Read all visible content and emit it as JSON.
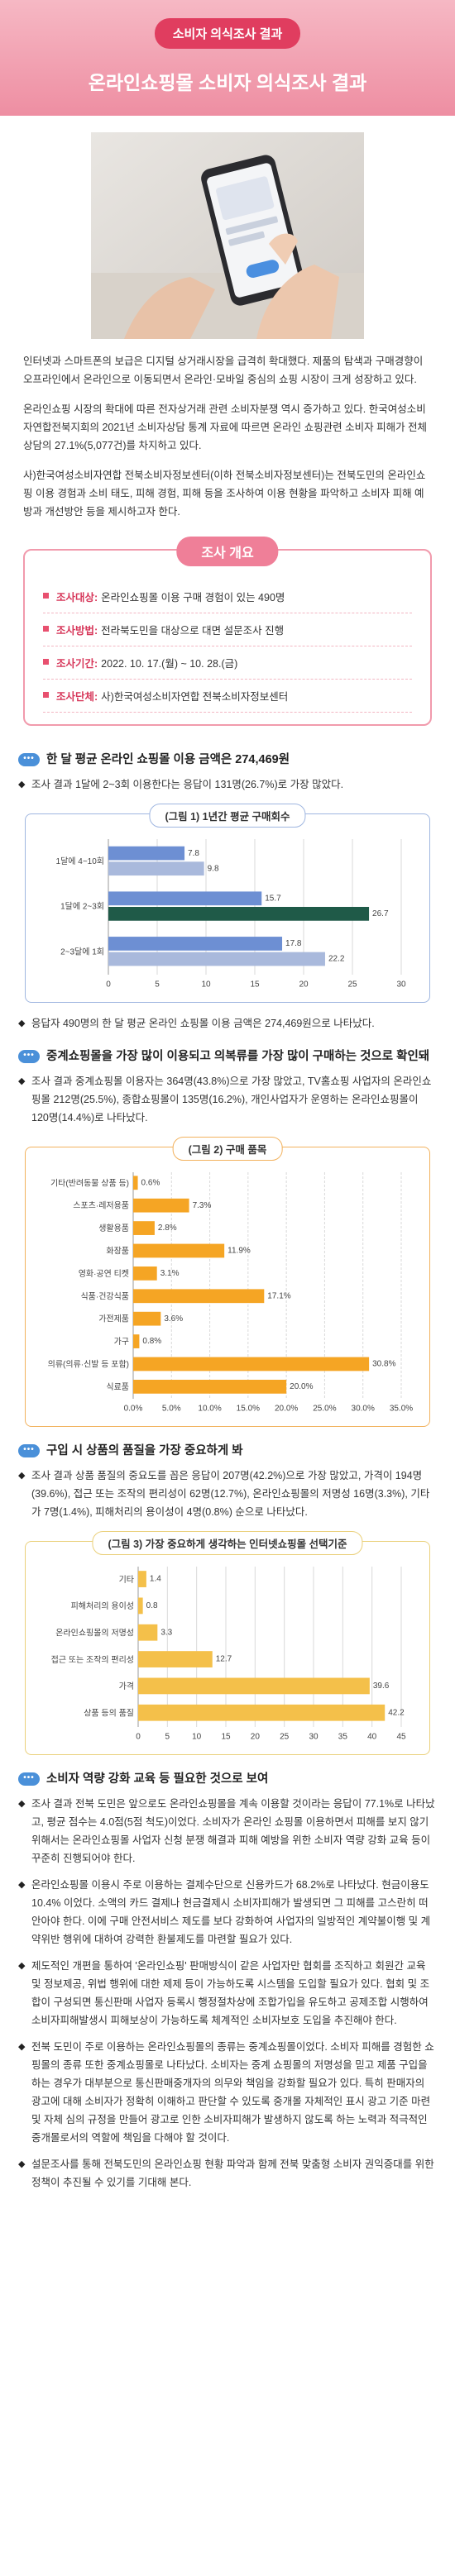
{
  "header": {
    "badge": "소비자 의식조사 결과",
    "title": "온라인쇼핑몰 소비자 의식조사 결과"
  },
  "intro": [
    "인터넷과 스마트폰의 보급은 디지털 상거래시장을 급격히 확대했다. 제품의 탐색과 구매경향이 오프라인에서 온라인으로 이동되면서 온라인·모바일 중심의 쇼핑 시장이 크게 성장하고 있다.",
    "온라인쇼핑 시장의 확대에 따른 전자상거래 관련 소비자분쟁 역시 증가하고 있다. 한국여성소비자연합전북지회의 2021년 소비자상담 통계 자료에 따르면 온라인 쇼핑관련 소비자 피해가 전체 상담의 27.1%(5,077건)를 차지하고 있다.",
    "사)한국여성소비자연합 전북소비자정보센터(이하 전북소비자정보센터)는 전북도민의 온라인쇼핑 이용 경험과 소비 태도, 피해 경험, 피해 등을 조사하여 이용 현황을 파악하고 소비자 피해 예방과 개선방안 등을 제시하고자 한다."
  ],
  "overview": {
    "title": "조사 개요",
    "items": [
      {
        "label": "조사대상:",
        "text": "온라인쇼핑몰 이용 구매 경험이 있는 490명"
      },
      {
        "label": "조사방법:",
        "text": "전라북도민을 대상으로 대면 설문조사 진행"
      },
      {
        "label": "조사기간:",
        "text": "2022. 10. 17.(월) ~ 10. 28.(금)"
      },
      {
        "label": "조사단체:",
        "text": "사)한국여성소비자연합 전북소비자정보센터"
      }
    ]
  },
  "sections": [
    {
      "heading": "한 달 평균 온라인 쇼핑몰 이용 금액은 274,469원",
      "bullets": [
        "조사 결과 1달에 2~3회 이용한다는 응답이 131명(26.7%)로 가장 많았다."
      ],
      "after_chart": [
        "응답자 490명의 한 달 평균 온라인 쇼핑몰 이용 금액은 274,469원으로 나타났다."
      ]
    },
    {
      "heading": "중계쇼핑몰을 가장 많이 이용되고 의복류를 가장 많이 구매하는 것으로 확인돼",
      "bullets": [
        "조사 결과 중계쇼핑몰 이용자는 364명(43.8%)으로 가장 많았고, TV홈쇼핑 사업자의 온라인쇼핑몰 212명(25.5%), 종합쇼핑몰이 135명(16.2%), 개인사업자가 운영하는 온라인쇼핑몰이 120명(14.4%)로 나타났다."
      ]
    },
    {
      "heading": "구입 시 상품의 품질을 가장 중요하게 봐",
      "bullets": [
        "조사 결과 상품 품질의 중요도를 꼽은 응답이 207명(42.2%)으로 가장 많았고, 가격이 194명(39.6%), 접근 또는 조작의 편리성이 62명(12.7%), 온라인쇼핑몰의 저명성 16명(3.3%), 기타가 7명(1.4%), 피해처리의 용이성이 4명(0.8%) 순으로 나타났다."
      ]
    },
    {
      "heading": "소비자 역량 강화 교육 등 필요한 것으로 보여",
      "bullets": [
        "조사 결과 전북 도민은 앞으로도 온라인쇼핑몰을 계속 이용할 것이라는 응답이 77.1%로 나타났고, 평균 점수는 4.0점(5점 척도)이었다. 소비자가 온라인 쇼핑몰 이용하면서 피해를 보지 않기 위해서는 온라인쇼핑몰 사업자 신청 분쟁 해결과 피해 예방을 위한 소비자 역량 강화 교육 등이 꾸준히 진행되어야 한다.",
        "온라인쇼핑몰 이용시 주로 이용하는 결제수단으로 신용카드가 68.2%로 나타났다. 현금이용도 10.4% 이었다. 소액의 카드 결제나 현금결제시 소비자피해가 발생되면 그 피해를 고스란히 떠안아야 한다. 이에 구매 안전서비스 제도를 보다 강화하여 사업자의 일방적인 계약불이행 및 계약위반 행위에 대하여 강력한 환불제도를 마련할 필요가 있다.",
        "제도적인 개편을 통하여 '온라인쇼핑' 판매방식이 같은 사업자만 협회를 조직하고 회원간 교육 및 정보제공, 위법 행위에 대한 제제 등이 가능하도록 시스템을 도입할 필요가 있다. 협회 및 조합이 구성되면 통신판매 사업자 등록시 행정절차상에 조합가입을 유도하고 공제조합 시행하여 소비자피해발생시 피해보상이 가능하도록 체계적인 소비자보호 도입을 추진해야 한다.",
        "전북 도민이 주로 이용하는 온라인쇼핑몰의 종류는 중계쇼핑몰이었다. 소비자 피해를 경험한 쇼핑몰의 종류 또한 중계쇼핑몰로 나타났다. 소비자는 중계 쇼핑몰의 저명성을 믿고 제품 구입을 하는 경우가 대부분으로 통신판매중개자의 의무와 책임을 강화할 필요가 있다. 특히 판매자의 광고에 대해 소비자가 정확히 이해하고 판단할 수 있도록 중개몰 자체적인 표시 광고 기준 마련 및 자체 심의 규정을 만들어 광고로 인한 소비자피해가 발생하지 않도록 하는 노력과 적극적인 중개몰로서의 역할에 책임을 다해야 할 것이다.",
        "설문조사를 통해 전북도민의 온라인쇼핑 현황 파악과 함께 전북 맞춤형 소비자 권익증대를 위한 정책이 추진될 수 있기를 기대해 본다."
      ]
    }
  ],
  "chart_data": [
    {
      "type": "bar",
      "orientation": "horizontal",
      "title": "(그림 1) 1년간 평균 구매회수",
      "categories": [
        "1달에 4~10회",
        "1달에 2~3회",
        "2~3달에 1회"
      ],
      "series": [
        {
          "color": "#6d8fd3",
          "values": [
            7.8,
            15.7,
            17.8
          ]
        },
        {
          "colors": [
            "#a9b9dc",
            "#1f5a48",
            "#a9b9dc"
          ],
          "values": [
            9.8,
            26.7,
            22.2
          ]
        }
      ],
      "xlim": [
        0,
        30
      ],
      "xticks": [
        0,
        5,
        10,
        15,
        20,
        25,
        30
      ],
      "grid": true
    },
    {
      "type": "bar",
      "orientation": "horizontal",
      "title": "(그림 2) 구매 품목",
      "categories": [
        "기타(반려동물 상품 등)",
        "스포츠·레저용품",
        "생활용품",
        "화장품",
        "영화·공연 티켓",
        "식품·건강식품",
        "가전제품",
        "가구",
        "의류(의류·신발 등 포함)",
        "식료품"
      ],
      "values": [
        0.6,
        7.3,
        2.8,
        11.9,
        3.1,
        17.1,
        3.6,
        0.8,
        30.8,
        20.0
      ],
      "value_labels": [
        "0.6%",
        "7.3%",
        "2.8%",
        "11.9%",
        "3.1%",
        "17.1%",
        "3.6%",
        "0.8%",
        "30.8%",
        "20.0%"
      ],
      "color": "#f5a524",
      "xlim": [
        0,
        35
      ],
      "xticks": [
        {
          "value": 0,
          "label": "0.0%"
        },
        {
          "value": 5,
          "label": "5.0%"
        },
        {
          "value": 10,
          "label": "10.0%"
        },
        {
          "value": 15,
          "label": "15.0%"
        },
        {
          "value": 20,
          "label": "20.0%"
        },
        {
          "value": 25,
          "label": "25.0%"
        },
        {
          "value": 30,
          "label": "30.0%"
        },
        {
          "value": 35,
          "label": "35.0%"
        }
      ],
      "grid": true
    },
    {
      "type": "bar",
      "orientation": "horizontal",
      "title": "(그림 3) 가장 중요하게 생각하는 인터넷쇼핑몰 선택기준",
      "categories": [
        "기타",
        "피해처리의 용이성",
        "온라인쇼핑몰의 저명성",
        "접근 또는 조작의 편리성",
        "가격",
        "상품 등의 품질"
      ],
      "values": [
        1.4,
        0.8,
        3.3,
        12.7,
        39.6,
        42.2
      ],
      "color": "#f4c04a",
      "xlim": [
        0,
        45
      ],
      "xticks": [
        0,
        5,
        10,
        15,
        20,
        25,
        30,
        35,
        40,
        45
      ],
      "grid": true
    }
  ]
}
